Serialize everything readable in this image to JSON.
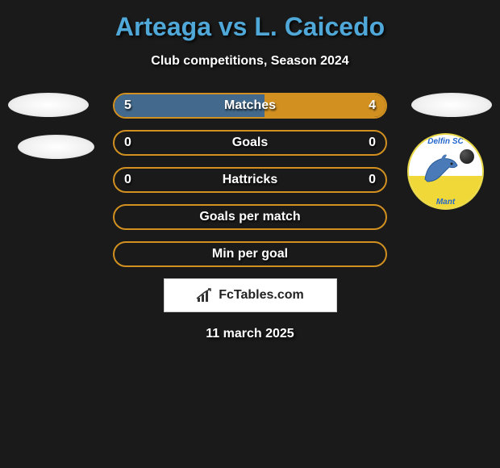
{
  "title": "Arteaga vs L. Caicedo",
  "subtitle": "Club competitions, Season 2024",
  "date": "11 march 2025",
  "fctables_text": "FcTables.com",
  "colors": {
    "background": "#1a1a1a",
    "title_color": "#4fa8d8",
    "text_color": "#ffffff",
    "bar_border": "#d19020",
    "fill_left": "#436a8c",
    "fill_right": "#d19020"
  },
  "stats": [
    {
      "label": "Matches",
      "left_value": "5",
      "right_value": "4",
      "left_pct": 55.5,
      "right_pct": 44.5
    },
    {
      "label": "Goals",
      "left_value": "0",
      "right_value": "0",
      "left_pct": 0,
      "right_pct": 0
    },
    {
      "label": "Hattricks",
      "left_value": "0",
      "right_value": "0",
      "left_pct": 0,
      "right_pct": 0
    },
    {
      "label": "Goals per match",
      "left_value": "",
      "right_value": "",
      "left_pct": 0,
      "right_pct": 0
    },
    {
      "label": "Min per goal",
      "left_value": "",
      "right_value": "",
      "left_pct": 0,
      "right_pct": 0
    }
  ],
  "badge_right_2": {
    "top_text": "Delfin SC",
    "bottom_text": "Mant"
  }
}
